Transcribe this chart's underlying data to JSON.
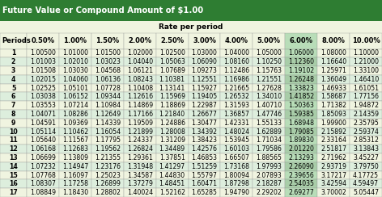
{
  "title": "Future Value or Compound Amount of $1.00",
  "subtitle": "Rate per period",
  "col_headers": [
    "Periods",
    "0.50%",
    "1.00%",
    "1.50%",
    "2.00%",
    "2.50%",
    "3.00%",
    "4.00%",
    "5.00%",
    "6.00%",
    "8.00%",
    "10.00%"
  ],
  "rows": [
    [
      1,
      1.005,
      1.01,
      1.015,
      1.02,
      1.025,
      1.03,
      1.04,
      1.05,
      1.06,
      1.08,
      1.1
    ],
    [
      2,
      1.01003,
      1.0201,
      1.03023,
      1.0404,
      1.05063,
      1.0609,
      1.0816,
      1.1025,
      1.1236,
      1.1664,
      1.21
    ],
    [
      3,
      1.01508,
      1.0303,
      1.04568,
      1.06121,
      1.07689,
      1.09273,
      1.12486,
      1.15763,
      1.19102,
      1.25971,
      1.331
    ],
    [
      4,
      1.02015,
      1.0406,
      1.06136,
      1.08243,
      1.10381,
      1.12551,
      1.16986,
      1.21551,
      1.26248,
      1.36049,
      1.4641
    ],
    [
      5,
      1.02525,
      1.05101,
      1.07728,
      1.10408,
      1.13141,
      1.15927,
      1.21665,
      1.27628,
      1.33823,
      1.46933,
      1.61051
    ],
    [
      6,
      1.03038,
      1.06152,
      1.09344,
      1.12616,
      1.15969,
      1.19405,
      1.26532,
      1.3401,
      1.41852,
      1.58687,
      1.77156
    ],
    [
      7,
      1.03553,
      1.07214,
      1.10984,
      1.14869,
      1.18869,
      1.22987,
      1.31593,
      1.4071,
      1.50363,
      1.71382,
      1.94872
    ],
    [
      8,
      1.04071,
      1.08286,
      1.12649,
      1.17166,
      1.2184,
      1.26677,
      1.36857,
      1.47746,
      1.59385,
      1.85093,
      2.14359
    ],
    [
      9,
      1.04591,
      1.09369,
      1.14339,
      1.19509,
      1.24886,
      1.30477,
      1.42331,
      1.55133,
      1.68948,
      1.999,
      2.35795
    ],
    [
      10,
      1.05114,
      1.10462,
      1.16054,
      1.21899,
      1.28008,
      1.34392,
      1.48024,
      1.62889,
      1.79085,
      2.15892,
      2.59374
    ],
    [
      11,
      1.0564,
      1.11567,
      1.17795,
      1.24337,
      1.31209,
      1.38423,
      1.53945,
      1.71034,
      1.8983,
      2.33164,
      2.85312
    ],
    [
      12,
      1.06168,
      1.12683,
      1.19562,
      1.26824,
      1.34489,
      1.42576,
      1.60103,
      1.79586,
      2.0122,
      2.51817,
      3.13843
    ],
    [
      13,
      1.06699,
      1.13809,
      1.21355,
      1.29361,
      1.37851,
      1.46853,
      1.66507,
      1.88565,
      2.13293,
      2.71962,
      3.45227
    ],
    [
      14,
      1.07232,
      1.14947,
      1.23176,
      1.31948,
      1.41297,
      1.51259,
      1.73168,
      1.97993,
      2.2609,
      2.93719,
      3.7975
    ],
    [
      15,
      1.07768,
      1.16097,
      1.25023,
      1.34587,
      1.4483,
      1.55797,
      1.80094,
      2.07893,
      2.39656,
      3.17217,
      4.17725
    ],
    [
      16,
      1.08307,
      1.17258,
      1.26899,
      1.37279,
      1.48451,
      1.60471,
      1.87298,
      2.18287,
      2.54035,
      3.42594,
      4.59497
    ],
    [
      17,
      1.08849,
      1.1843,
      1.28802,
      1.40024,
      1.52162,
      1.65285,
      1.9479,
      2.29202,
      2.69277,
      3.70002,
      5.05447
    ]
  ],
  "title_bg": "#2e7d32",
  "title_fg": "#ffffff",
  "subtitle_bg": "#f0f4e0",
  "header_bg": "#f0f4e0",
  "row_bg_light": "#f0f4e0",
  "row_bg_dark": "#ddeedd",
  "highlight_col_bg_light": "#b8ddb8",
  "highlight_col_bg_dark": "#a8cda8",
  "highlight_col_header": "#b8ddb8",
  "title_fontsize": 7.2,
  "subtitle_fontsize": 6.5,
  "header_fontsize": 6.0,
  "data_fontsize": 5.6,
  "highlight_col": 9
}
